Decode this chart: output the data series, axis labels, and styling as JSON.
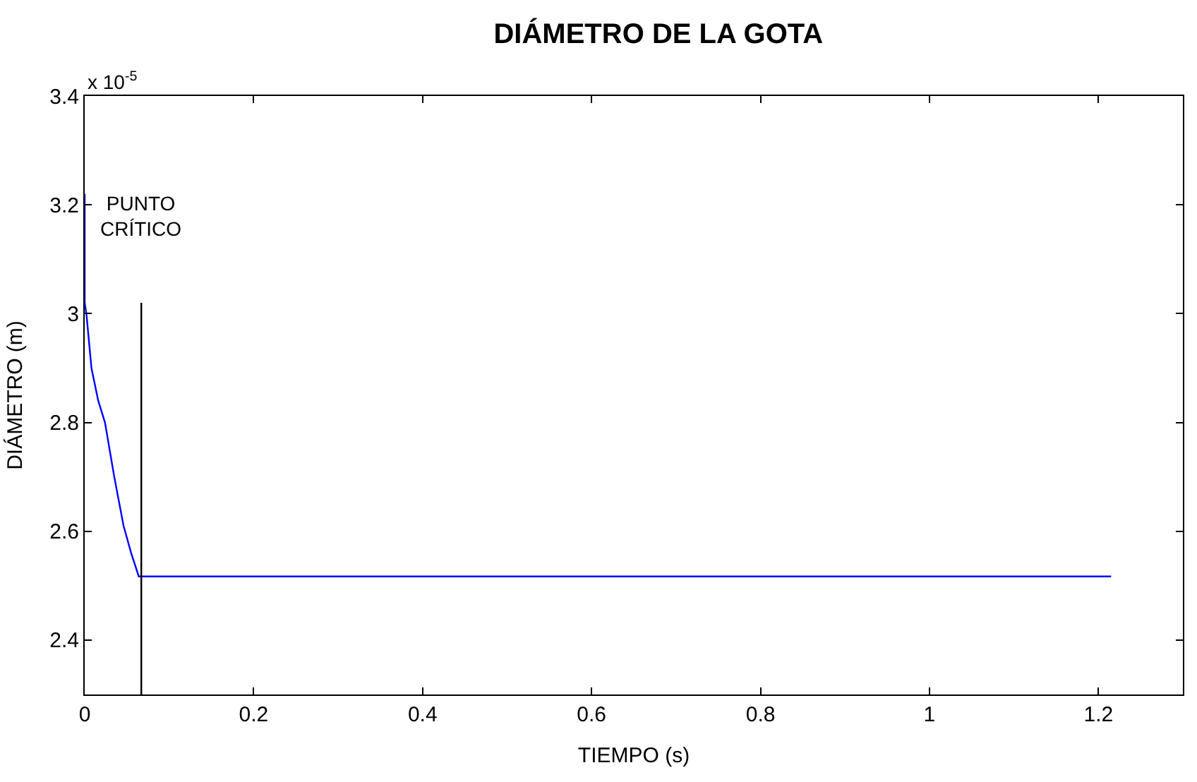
{
  "chart_data": {
    "type": "line",
    "title": "DIÁMETRO DE LA GOTA",
    "xlabel": "TIEMPO (s)",
    "ylabel": "DIÁMETRO (m)",
    "annotations": [
      "x 10$^{-5}$",
      "PUNTO\nCRÍTICO"
    ],
    "series": [
      {
        "color": "#0000ff",
        "x": [
          0,
          0,
          0.002,
          0.008,
          0.016,
          0.024,
          0.035,
          0.046,
          0.055,
          0.064,
          0.3,
          0.6,
          0.9,
          1.215
        ],
        "values": [
          3.22,
          3.02,
          3.0,
          2.9,
          2.84,
          2.8,
          2.7,
          2.61,
          2.56,
          2.517,
          2.517,
          2.517,
          2.517,
          2.517
        ]
      },
      {
        "color": "#000000",
        "x": [
          0.067,
          0.067
        ],
        "values": [
          2.3,
          3.02
        ]
      }
    ],
    "xlim": [
      0,
      1.3
    ],
    "ylim": [
      2.3,
      3.4
    ],
    "xticks": [
      0,
      0.2,
      0.4,
      0.6,
      0.8,
      1,
      1.2
    ],
    "yticks": [
      2.4,
      2.6,
      2.8,
      3,
      3.2,
      3.4
    ],
    "marker": "none",
    "line_style": "solid"
  }
}
